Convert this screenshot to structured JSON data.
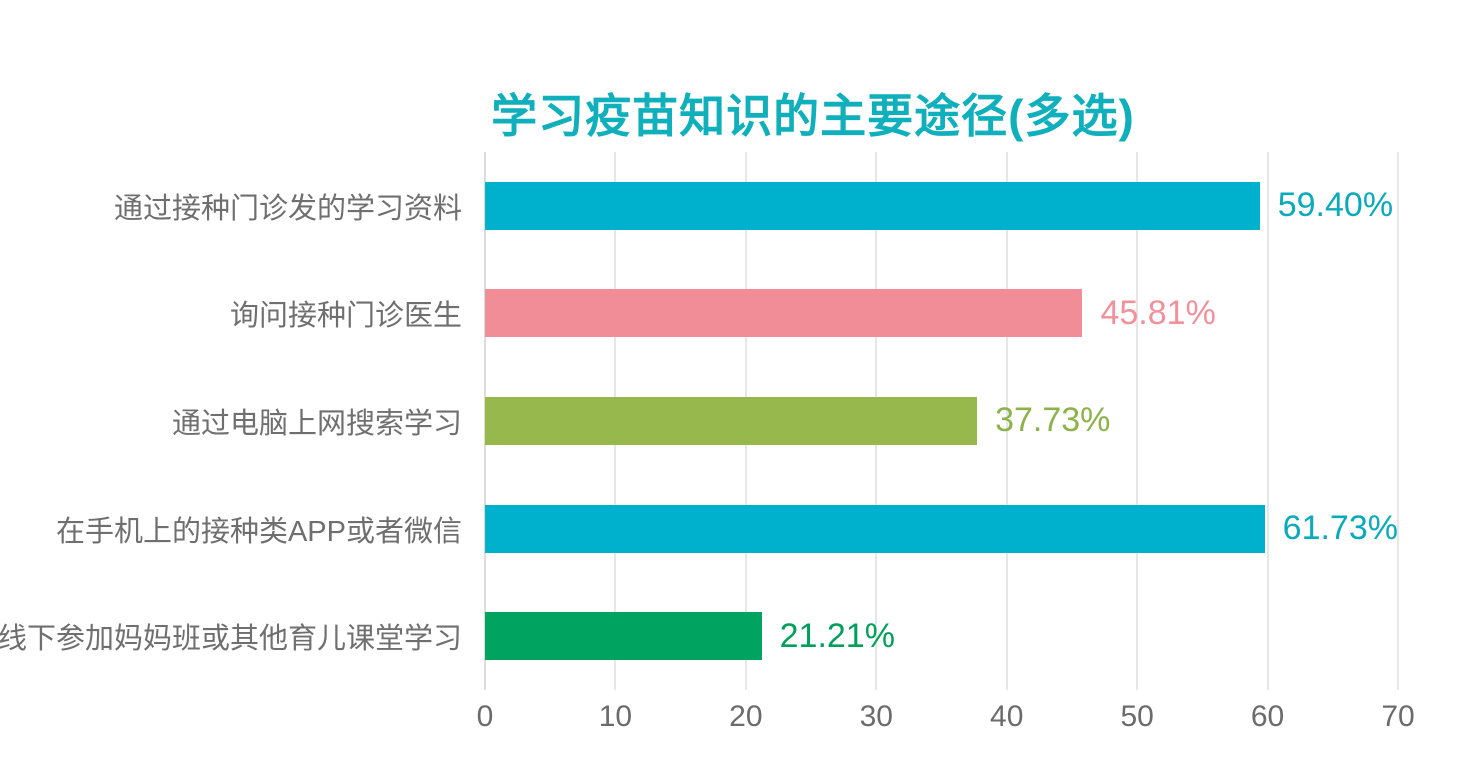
{
  "chart_data": {
    "type": "bar",
    "orientation": "horizontal",
    "title": "学习疫苗知识的主要途径(多选)",
    "title_color": "#10AFBC",
    "categories": [
      "通过接种门诊发的学习资料",
      "询问接种门诊医生",
      "通过电脑上网搜索学习",
      "在手机上的接种类APP或者微信",
      "线下参加妈妈班或其他育儿课堂学习"
    ],
    "values": [
      59.4,
      45.81,
      37.73,
      61.73,
      21.21
    ],
    "value_labels": [
      "59.40%",
      "45.81%",
      "37.73%",
      "61.73%",
      "21.21%"
    ],
    "bar_colors": [
      "#00B1CD",
      "#F08D97",
      "#96B84D",
      "#00B1CD",
      "#00A460"
    ],
    "value_label_colors": [
      "#0AA9BC",
      "#F0919B",
      "#8CB34A",
      "#0AA9BC",
      "#00A05C"
    ],
    "xlabel": "",
    "ylabel": "",
    "xlim": [
      0,
      70
    ],
    "x_ticks": [
      "0",
      "10",
      "20",
      "30",
      "40",
      "50",
      "60",
      "70"
    ],
    "grid": true,
    "grid_color": "#E6E6E6",
    "zero_line_color": "#DDDDDD",
    "category_label_color": "#6F6F6F",
    "tick_label_color": "#6B6B6B",
    "legend_position": "none",
    "background": "#FFFFFF"
  }
}
